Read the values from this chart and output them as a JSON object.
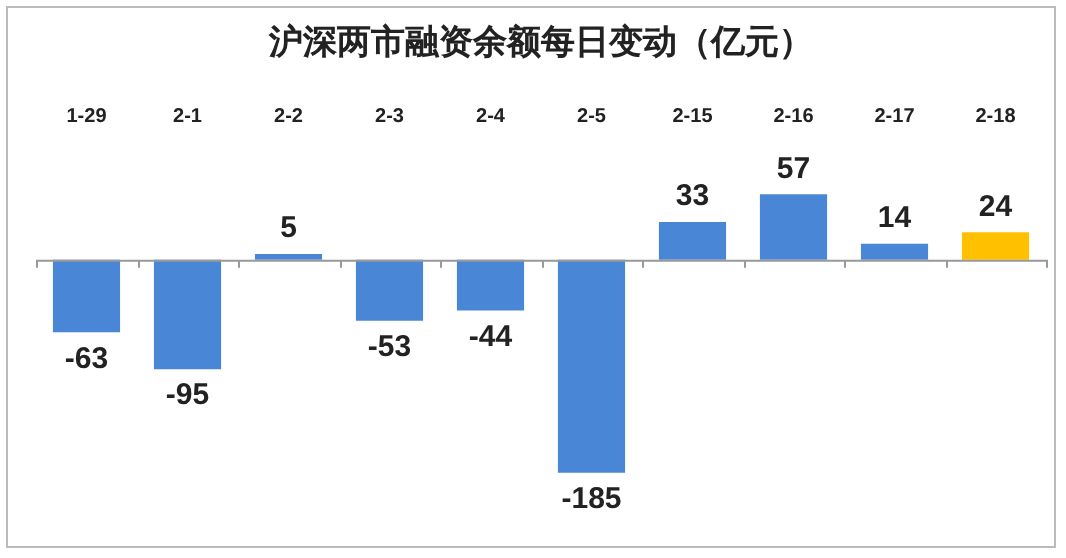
{
  "chart_data": {
    "type": "bar",
    "title": "沪深两市融资余额每日变动（亿元）",
    "categories": [
      "1-29",
      "2-1",
      "2-2",
      "2-3",
      "2-4",
      "2-5",
      "2-15",
      "2-16",
      "2-17",
      "2-18"
    ],
    "values": [
      -63,
      -95,
      5,
      -53,
      -44,
      -185,
      33,
      57,
      14,
      24
    ],
    "colors": [
      "#4a86d6",
      "#4a86d6",
      "#4a86d6",
      "#4a86d6",
      "#4a86d6",
      "#4a86d6",
      "#4a86d6",
      "#4a86d6",
      "#4a86d6",
      "#ffc000"
    ],
    "data_labels": true,
    "grid": false,
    "legend": false
  }
}
